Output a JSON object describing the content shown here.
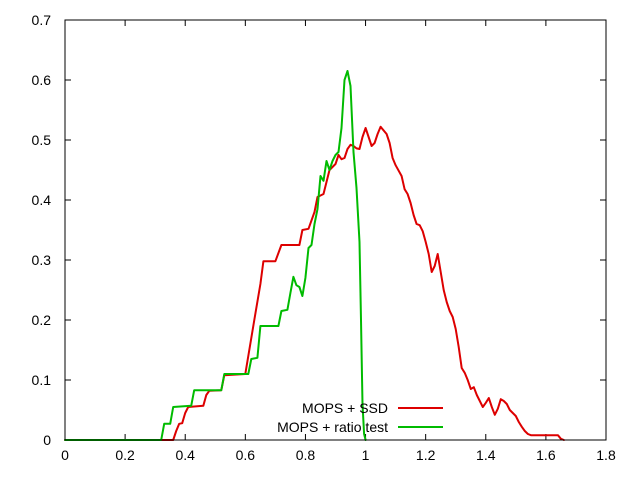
{
  "chart_data": {
    "type": "line",
    "title": "",
    "xlabel": "",
    "ylabel": "",
    "xlim": [
      0,
      1.8
    ],
    "ylim": [
      0,
      0.7
    ],
    "xticks": [
      0,
      0.2,
      0.4,
      0.6,
      0.8,
      1,
      1.2,
      1.4,
      1.6,
      1.8
    ],
    "xtick_labels": [
      "0",
      "0.2",
      "0.4",
      "0.6",
      "0.8",
      "1",
      "1.2",
      "1.4",
      "1.6",
      "1.8"
    ],
    "yticks": [
      0,
      0.1,
      0.2,
      0.3,
      0.4,
      0.5,
      0.6,
      0.7
    ],
    "ytick_labels": [
      "0",
      "0.1",
      "0.2",
      "0.3",
      "0.4",
      "0.5",
      "0.6",
      "0.7"
    ],
    "grid": false,
    "legend_position": "bottom-center",
    "series": [
      {
        "name": "MOPS + SSD",
        "color": "#dd0000",
        "points": [
          [
            0,
            0
          ],
          [
            0.36,
            0
          ],
          [
            0.37,
            0.015
          ],
          [
            0.38,
            0.027
          ],
          [
            0.39,
            0.028
          ],
          [
            0.4,
            0.045
          ],
          [
            0.41,
            0.055
          ],
          [
            0.46,
            0.057
          ],
          [
            0.47,
            0.075
          ],
          [
            0.48,
            0.082
          ],
          [
            0.52,
            0.083
          ],
          [
            0.53,
            0.108
          ],
          [
            0.6,
            0.11
          ],
          [
            0.61,
            0.14
          ],
          [
            0.63,
            0.2
          ],
          [
            0.65,
            0.26
          ],
          [
            0.66,
            0.298
          ],
          [
            0.7,
            0.298
          ],
          [
            0.72,
            0.325
          ],
          [
            0.78,
            0.325
          ],
          [
            0.79,
            0.35
          ],
          [
            0.81,
            0.352
          ],
          [
            0.83,
            0.38
          ],
          [
            0.84,
            0.405
          ],
          [
            0.86,
            0.41
          ],
          [
            0.87,
            0.43
          ],
          [
            0.88,
            0.45
          ],
          [
            0.89,
            0.455
          ],
          [
            0.9,
            0.46
          ],
          [
            0.91,
            0.475
          ],
          [
            0.92,
            0.468
          ],
          [
            0.93,
            0.47
          ],
          [
            0.94,
            0.485
          ],
          [
            0.95,
            0.492
          ],
          [
            0.96,
            0.49
          ],
          [
            0.97,
            0.486
          ],
          [
            0.98,
            0.485
          ],
          [
            0.99,
            0.505
          ],
          [
            1.0,
            0.52
          ],
          [
            1.01,
            0.505
          ],
          [
            1.02,
            0.49
          ],
          [
            1.03,
            0.495
          ],
          [
            1.04,
            0.51
          ],
          [
            1.05,
            0.522
          ],
          [
            1.07,
            0.51
          ],
          [
            1.08,
            0.495
          ],
          [
            1.09,
            0.47
          ],
          [
            1.1,
            0.458
          ],
          [
            1.12,
            0.44
          ],
          [
            1.13,
            0.418
          ],
          [
            1.14,
            0.41
          ],
          [
            1.15,
            0.395
          ],
          [
            1.16,
            0.375
          ],
          [
            1.17,
            0.36
          ],
          [
            1.18,
            0.358
          ],
          [
            1.19,
            0.348
          ],
          [
            1.2,
            0.33
          ],
          [
            1.21,
            0.31
          ],
          [
            1.22,
            0.28
          ],
          [
            1.23,
            0.29
          ],
          [
            1.24,
            0.31
          ],
          [
            1.25,
            0.28
          ],
          [
            1.26,
            0.25
          ],
          [
            1.27,
            0.23
          ],
          [
            1.28,
            0.215
          ],
          [
            1.29,
            0.205
          ],
          [
            1.3,
            0.185
          ],
          [
            1.31,
            0.155
          ],
          [
            1.32,
            0.12
          ],
          [
            1.33,
            0.112
          ],
          [
            1.34,
            0.1
          ],
          [
            1.35,
            0.085
          ],
          [
            1.36,
            0.088
          ],
          [
            1.37,
            0.075
          ],
          [
            1.38,
            0.065
          ],
          [
            1.39,
            0.055
          ],
          [
            1.4,
            0.062
          ],
          [
            1.41,
            0.07
          ],
          [
            1.42,
            0.055
          ],
          [
            1.43,
            0.042
          ],
          [
            1.44,
            0.052
          ],
          [
            1.45,
            0.068
          ],
          [
            1.46,
            0.065
          ],
          [
            1.47,
            0.06
          ],
          [
            1.48,
            0.05
          ],
          [
            1.5,
            0.04
          ],
          [
            1.51,
            0.03
          ],
          [
            1.52,
            0.022
          ],
          [
            1.53,
            0.015
          ],
          [
            1.54,
            0.01
          ],
          [
            1.55,
            0.008
          ],
          [
            1.64,
            0.008
          ],
          [
            1.65,
            0.002
          ],
          [
            1.66,
            0
          ]
        ]
      },
      {
        "name": "MOPS + ratio test",
        "color": "#00bb00",
        "points": [
          [
            0,
            0
          ],
          [
            0.32,
            0
          ],
          [
            0.33,
            0.027
          ],
          [
            0.35,
            0.027
          ],
          [
            0.36,
            0.055
          ],
          [
            0.42,
            0.057
          ],
          [
            0.43,
            0.083
          ],
          [
            0.52,
            0.083
          ],
          [
            0.53,
            0.11
          ],
          [
            0.61,
            0.11
          ],
          [
            0.62,
            0.135
          ],
          [
            0.64,
            0.137
          ],
          [
            0.65,
            0.19
          ],
          [
            0.71,
            0.19
          ],
          [
            0.72,
            0.215
          ],
          [
            0.74,
            0.217
          ],
          [
            0.75,
            0.245
          ],
          [
            0.76,
            0.272
          ],
          [
            0.77,
            0.258
          ],
          [
            0.78,
            0.255
          ],
          [
            0.79,
            0.24
          ],
          [
            0.8,
            0.27
          ],
          [
            0.81,
            0.32
          ],
          [
            0.82,
            0.325
          ],
          [
            0.83,
            0.36
          ],
          [
            0.84,
            0.385
          ],
          [
            0.85,
            0.44
          ],
          [
            0.86,
            0.432
          ],
          [
            0.87,
            0.465
          ],
          [
            0.88,
            0.45
          ],
          [
            0.89,
            0.465
          ],
          [
            0.9,
            0.475
          ],
          [
            0.91,
            0.48
          ],
          [
            0.92,
            0.52
          ],
          [
            0.93,
            0.6
          ],
          [
            0.94,
            0.615
          ],
          [
            0.95,
            0.59
          ],
          [
            0.96,
            0.48
          ],
          [
            0.97,
            0.42
          ],
          [
            0.98,
            0.33
          ],
          [
            0.985,
            0.2
          ],
          [
            0.99,
            0.06
          ],
          [
            0.995,
            0.01
          ],
          [
            1.0,
            0
          ]
        ]
      }
    ]
  }
}
